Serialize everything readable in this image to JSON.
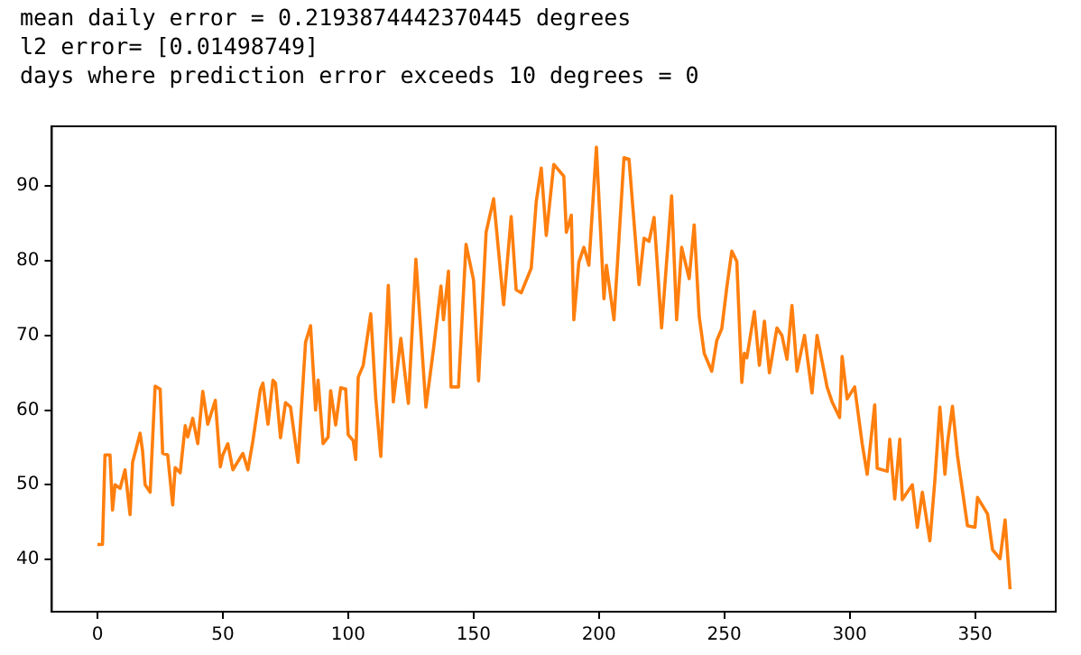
{
  "chart_data": {
    "type": "line",
    "annotations": [
      "mean daily error = 0.2193874442370445  degrees",
      "l2 error= [0.01498749]",
      "days where prediction error exceeds 10 degrees = 0"
    ],
    "x": [
      0,
      2,
      3,
      5,
      6,
      7,
      9,
      11,
      13,
      14,
      17,
      18,
      19,
      21,
      23,
      25,
      26,
      28,
      30,
      31,
      33,
      35,
      36,
      38,
      40,
      42,
      44,
      47,
      49,
      50,
      52,
      54,
      58,
      60,
      62,
      65,
      66,
      68,
      70,
      71,
      73,
      75,
      77,
      80,
      83,
      85,
      87,
      88,
      90,
      92,
      93,
      95,
      97,
      99,
      100,
      102,
      103,
      104,
      106,
      109,
      111,
      113,
      116,
      118,
      121,
      124,
      127,
      131,
      134,
      137,
      138,
      140,
      141,
      144,
      147,
      150,
      152,
      155,
      158,
      162,
      165,
      167,
      169,
      173,
      175,
      177,
      179,
      182,
      186,
      187,
      189,
      190,
      192,
      194,
      196,
      199,
      202,
      203,
      206,
      210,
      212,
      216,
      218,
      220,
      222,
      225,
      229,
      231,
      233,
      236,
      238,
      240,
      242,
      245,
      247,
      249,
      251,
      253,
      255,
      257,
      258,
      259,
      262,
      264,
      266,
      268,
      271,
      273,
      275,
      277,
      279,
      282,
      285,
      287,
      291,
      293,
      296,
      297,
      299,
      302,
      305,
      307,
      310,
      311,
      315,
      316,
      318,
      320,
      321,
      325,
      327,
      329,
      332,
      334,
      336,
      338,
      339,
      341,
      343,
      347,
      350,
      351,
      355,
      357,
      360,
      362,
      364
    ],
    "series": [
      {
        "color": "#ff7f0e",
        "values": [
          42,
          42,
          54,
          54,
          46.6,
          50,
          49.5,
          52,
          46,
          53,
          56.9,
          54.5,
          50,
          49,
          63.2,
          62.8,
          54.2,
          54,
          47.3,
          52.3,
          51.6,
          57.9,
          56.4,
          58.9,
          55.5,
          62.5,
          58.1,
          61.3,
          52.4,
          54,
          55.5,
          52,
          54.2,
          52,
          55.9,
          62.8,
          63.6,
          58.1,
          64,
          63.6,
          56.3,
          61,
          60.4,
          53,
          69.1,
          71.3,
          60,
          64,
          55.5,
          56.4,
          62.6,
          58,
          63,
          62.8,
          56.7,
          55.9,
          53.4,
          64.4,
          66,
          72.9,
          61.6,
          53.8,
          76.7,
          61.1,
          69.6,
          60.9,
          80.2,
          60.4,
          68.1,
          76.6,
          72.1,
          78.6,
          63.1,
          63.1,
          82.2,
          77.4,
          63.9,
          83.8,
          88.3,
          74.1,
          85.9,
          76.1,
          75.7,
          79,
          87.9,
          92.4,
          83.4,
          92.9,
          91.3,
          83.8,
          86.1,
          72.1,
          79.8,
          81.8,
          79.4,
          95.2,
          74.9,
          79.4,
          72.1,
          93.8,
          93.6,
          76.8,
          83,
          82.6,
          85.8,
          71,
          88.7,
          72.1,
          81.8,
          77.6,
          84.8,
          72.5,
          67.6,
          65.2,
          69.3,
          70.9,
          76.4,
          81.3,
          79.9,
          63.7,
          67.6,
          67,
          73.2,
          66,
          71.9,
          65,
          71,
          70,
          66.8,
          74,
          65.2,
          70,
          62.3,
          70,
          63.1,
          61.1,
          59,
          67.2,
          61.5,
          63.1,
          55.5,
          51.4,
          60.7,
          52.2,
          51.8,
          56.1,
          48.1,
          56.1,
          48,
          50,
          44.3,
          49,
          42.5,
          50.6,
          60.4,
          51.4,
          55.5,
          60.5,
          53.9,
          44.5,
          44.3,
          48.3,
          46.1,
          41.3,
          40.1,
          45.3,
          36
        ]
      }
    ],
    "xlim": [
      -18.2,
      382.2
    ],
    "xticks": [
      0,
      50,
      100,
      150,
      200,
      250,
      300,
      350
    ],
    "ylim": [
      33,
      98
    ],
    "yticks": [
      40,
      50,
      60,
      70,
      80,
      90
    ],
    "grid": false,
    "legend": false
  }
}
